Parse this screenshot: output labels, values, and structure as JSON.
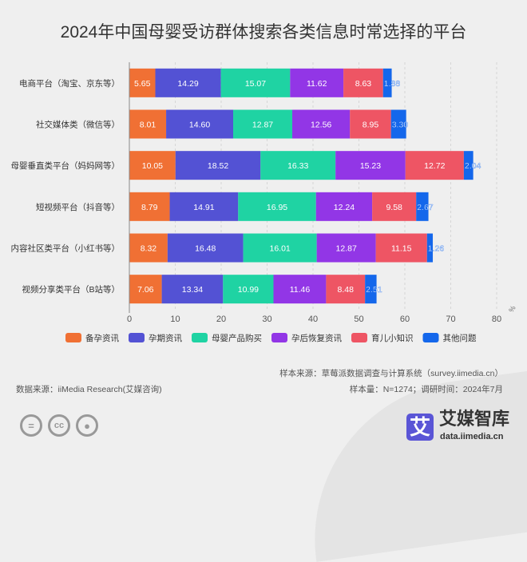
{
  "chart_data": {
    "type": "bar",
    "orientation": "horizontal",
    "stacked": true,
    "title": "2024年中国母婴受访群体搜索各类信息时常选择的平台",
    "unit": "%",
    "xlim": [
      0,
      80
    ],
    "xticks": [
      0,
      10,
      20,
      30,
      40,
      50,
      60,
      70,
      80
    ],
    "grid": "vertical dashed",
    "legend_placement": "bottom",
    "categories": [
      "电商平台（淘宝、京东等）",
      "社交媒体类（微信等）",
      "母婴垂直类平台（妈妈网等）",
      "短视频平台（抖音等）",
      "内容社区类平台（小红书等）",
      "视频分享类平台（B站等）"
    ],
    "series": [
      {
        "name": "备孕资讯",
        "color": "#f07034",
        "values": [
          5.65,
          8.01,
          10.05,
          8.79,
          8.32,
          7.06
        ]
      },
      {
        "name": "孕期资讯",
        "color": "#5352d4",
        "values": [
          14.29,
          14.6,
          18.52,
          14.91,
          16.48,
          13.34
        ]
      },
      {
        "name": "母婴产品购买",
        "color": "#1fd3a3",
        "values": [
          15.07,
          12.87,
          16.33,
          16.95,
          16.01,
          10.99
        ]
      },
      {
        "name": "孕后恢复资讯",
        "color": "#9236e6",
        "values": [
          11.62,
          12.56,
          15.23,
          12.24,
          12.87,
          11.46
        ]
      },
      {
        "name": "育儿小知识",
        "color": "#ee5564",
        "values": [
          8.63,
          8.95,
          12.72,
          9.58,
          11.15,
          8.48
        ]
      },
      {
        "name": "其他问题",
        "color": "#1467eb",
        "values": [
          1.88,
          3.3,
          2.04,
          2.67,
          1.26,
          2.51
        ]
      }
    ]
  },
  "footer": {
    "sample_source": "样本来源：草莓派数据调查与计算系统（survey.iimedia.cn）",
    "sample_size": "样本量：N=1274；调研时间：2024年7月",
    "data_source": "数据来源：iiMedia Research(艾媒咨询)"
  },
  "logo": {
    "mark": "艾",
    "name": "艾媒智库",
    "url": "data.iimedia.cn"
  },
  "license_icons": [
    "=",
    "cc",
    "person"
  ]
}
